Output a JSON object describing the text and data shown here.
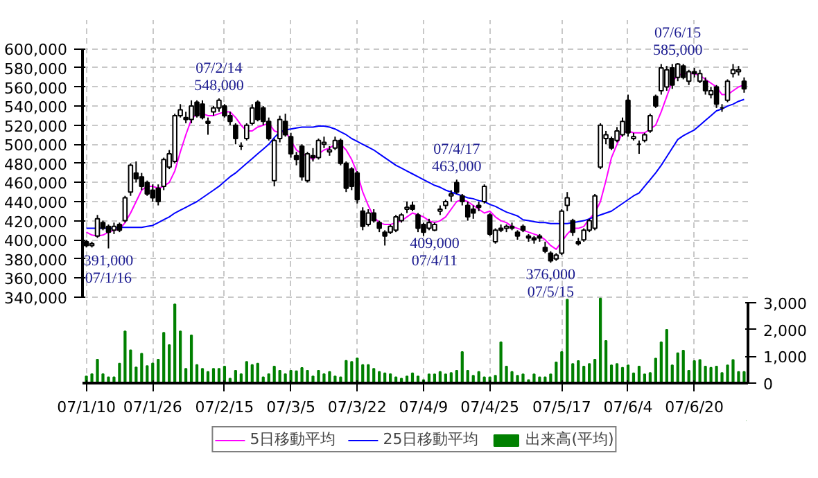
{
  "chart_data": {
    "type": "candlestick",
    "categories": [
      "07/1/10",
      null,
      null,
      null,
      null,
      null,
      null,
      null,
      null,
      null,
      null,
      null,
      "07/1/26",
      null,
      null,
      null,
      null,
      null,
      null,
      null,
      null,
      null,
      null,
      null,
      null,
      "07/2/15",
      null,
      null,
      null,
      null,
      null,
      null,
      null,
      null,
      null,
      null,
      null,
      "07/3/5",
      null,
      null,
      null,
      null,
      null,
      null,
      null,
      null,
      null,
      null,
      null,
      "07/3/22",
      null,
      null,
      null,
      null,
      null,
      null,
      null,
      null,
      null,
      null,
      null,
      "07/4/9",
      null,
      null,
      null,
      null,
      null,
      null,
      null,
      null,
      null,
      null,
      null,
      "07/4/25",
      null,
      null,
      null,
      null,
      null,
      null,
      null,
      null,
      null,
      null,
      null,
      null,
      "07/5/17",
      null,
      null,
      null,
      null,
      null,
      null,
      null,
      null,
      null,
      null,
      null,
      "07/6/4",
      null,
      null,
      null,
      null,
      null,
      null,
      null,
      null,
      null,
      null,
      null,
      "07/6/20",
      null,
      null,
      null,
      null,
      null,
      null,
      null,
      null,
      null
    ],
    "ohlc": [
      [
        398000,
        400000,
        392000,
        394000
      ],
      [
        394000,
        398000,
        392000,
        396000
      ],
      [
        404000,
        426000,
        402000,
        422000
      ],
      [
        418000,
        420000,
        410000,
        412000
      ],
      [
        414000,
        416000,
        391000,
        408000
      ],
      [
        410000,
        418000,
        406000,
        414000
      ],
      [
        416000,
        418000,
        408000,
        410000
      ],
      [
        420000,
        446000,
        418000,
        444000
      ],
      [
        450000,
        480000,
        446000,
        478000
      ],
      [
        470000,
        482000,
        460000,
        464000
      ],
      [
        466000,
        470000,
        452000,
        456000
      ],
      [
        460000,
        462000,
        446000,
        448000
      ],
      [
        452000,
        458000,
        440000,
        444000
      ],
      [
        454000,
        458000,
        436000,
        440000
      ],
      [
        456000,
        486000,
        452000,
        484000
      ],
      [
        476000,
        494000,
        474000,
        490000
      ],
      [
        482000,
        532000,
        480000,
        530000
      ],
      [
        530000,
        542000,
        528000,
        536000
      ],
      [
        528000,
        534000,
        522000,
        526000
      ],
      [
        526000,
        546000,
        522000,
        540000
      ],
      [
        544000,
        546000,
        528000,
        530000
      ],
      [
        542000,
        546000,
        526000,
        528000
      ],
      [
        524000,
        528000,
        510000,
        522000
      ],
      [
        534000,
        540000,
        530000,
        538000
      ],
      [
        538000,
        548000,
        534000,
        546000
      ],
      [
        540000,
        542000,
        528000,
        530000
      ],
      [
        530000,
        534000,
        520000,
        524000
      ],
      [
        520000,
        522000,
        500000,
        506000
      ],
      [
        498000,
        502000,
        494000,
        498000
      ],
      [
        506000,
        522000,
        504000,
        520000
      ],
      [
        522000,
        542000,
        520000,
        538000
      ],
      [
        544000,
        546000,
        524000,
        526000
      ],
      [
        538000,
        540000,
        520000,
        524000
      ],
      [
        524000,
        528000,
        504000,
        506000
      ],
      [
        462000,
        506000,
        456000,
        504000
      ],
      [
        506000,
        530000,
        502000,
        526000
      ],
      [
        524000,
        532000,
        508000,
        510000
      ],
      [
        508000,
        512000,
        486000,
        490000
      ],
      [
        488000,
        492000,
        478000,
        484000
      ],
      [
        498000,
        500000,
        462000,
        466000
      ],
      [
        462000,
        492000,
        460000,
        490000
      ],
      [
        488000,
        496000,
        482000,
        486000
      ],
      [
        486000,
        506000,
        484000,
        504000
      ],
      [
        500000,
        508000,
        496000,
        502000
      ],
      [
        492000,
        498000,
        488000,
        494000
      ],
      [
        496000,
        508000,
        494000,
        504000
      ],
      [
        504000,
        506000,
        478000,
        480000
      ],
      [
        480000,
        482000,
        450000,
        454000
      ],
      [
        474000,
        476000,
        452000,
        456000
      ],
      [
        470000,
        472000,
        438000,
        442000
      ],
      [
        430000,
        434000,
        410000,
        414000
      ],
      [
        416000,
        432000,
        414000,
        428000
      ],
      [
        428000,
        432000,
        418000,
        420000
      ],
      [
        418000,
        420000,
        408000,
        412000
      ],
      [
        408000,
        410000,
        394000,
        404000
      ],
      [
        408000,
        416000,
        406000,
        414000
      ],
      [
        410000,
        426000,
        408000,
        424000
      ],
      [
        420000,
        428000,
        418000,
        426000
      ],
      [
        432000,
        440000,
        428000,
        434000
      ],
      [
        436000,
        440000,
        430000,
        432000
      ],
      [
        426000,
        428000,
        408000,
        412000
      ],
      [
        416000,
        418000,
        404000,
        408000
      ],
      [
        412000,
        422000,
        410000,
        418000
      ],
      [
        410000,
        418000,
        409000,
        416000
      ],
      [
        430000,
        436000,
        426000,
        432000
      ],
      [
        436000,
        442000,
        432000,
        440000
      ],
      [
        446000,
        452000,
        440000,
        448000
      ],
      [
        460000,
        463000,
        448000,
        450000
      ],
      [
        446000,
        448000,
        436000,
        440000
      ],
      [
        436000,
        440000,
        420000,
        424000
      ],
      [
        432000,
        436000,
        422000,
        428000
      ],
      [
        436000,
        440000,
        430000,
        434000
      ],
      [
        440000,
        458000,
        438000,
        456000
      ],
      [
        426000,
        428000,
        404000,
        406000
      ],
      [
        398000,
        412000,
        396000,
        410000
      ],
      [
        412000,
        416000,
        408000,
        410000
      ],
      [
        412000,
        416000,
        408000,
        414000
      ],
      [
        414000,
        418000,
        410000,
        412000
      ],
      [
        408000,
        410000,
        400000,
        404000
      ],
      [
        414000,
        416000,
        408000,
        410000
      ],
      [
        404000,
        406000,
        398000,
        402000
      ],
      [
        402000,
        404000,
        396000,
        400000
      ],
      [
        404000,
        406000,
        398000,
        402000
      ],
      [
        392000,
        398000,
        386000,
        388000
      ],
      [
        386000,
        388000,
        376000,
        378000
      ],
      [
        380000,
        386000,
        378000,
        384000
      ],
      [
        386000,
        432000,
        384000,
        430000
      ],
      [
        436000,
        450000,
        430000,
        444000
      ],
      [
        420000,
        422000,
        404000,
        408000
      ],
      [
        398000,
        402000,
        394000,
        396000
      ],
      [
        400000,
        412000,
        398000,
        410000
      ],
      [
        410000,
        422000,
        408000,
        420000
      ],
      [
        412000,
        448000,
        410000,
        446000
      ],
      [
        476000,
        522000,
        474000,
        520000
      ],
      [
        506000,
        514000,
        500000,
        510000
      ],
      [
        506000,
        508000,
        494000,
        496000
      ],
      [
        504000,
        518000,
        502000,
        514000
      ],
      [
        510000,
        528000,
        508000,
        524000
      ],
      [
        546000,
        552000,
        508000,
        512000
      ],
      [
        506000,
        512000,
        504000,
        508000
      ],
      [
        500000,
        504000,
        490000,
        500000
      ],
      [
        504000,
        512000,
        502000,
        510000
      ],
      [
        514000,
        532000,
        512000,
        530000
      ],
      [
        550000,
        552000,
        538000,
        540000
      ],
      [
        556000,
        584000,
        552000,
        580000
      ],
      [
        560000,
        582000,
        556000,
        578000
      ],
      [
        580000,
        584000,
        558000,
        562000
      ],
      [
        570000,
        585000,
        566000,
        584000
      ],
      [
        582000,
        584000,
        568000,
        570000
      ],
      [
        566000,
        578000,
        562000,
        576000
      ],
      [
        576000,
        580000,
        570000,
        574000
      ],
      [
        566000,
        578000,
        564000,
        574000
      ],
      [
        566000,
        570000,
        552000,
        556000
      ],
      [
        552000,
        560000,
        548000,
        556000
      ],
      [
        560000,
        562000,
        538000,
        542000
      ],
      [
        538000,
        542000,
        534000,
        538000
      ],
      [
        546000,
        568000,
        544000,
        566000
      ],
      [
        574000,
        584000,
        570000,
        578000
      ],
      [
        576000,
        582000,
        572000,
        578000
      ],
      [
        566000,
        570000,
        554000,
        558000
      ]
    ],
    "series": [
      {
        "name": "5日移動平均",
        "type": "line",
        "color": "#ff00ff",
        "values": [
          408000,
          405000,
          404000,
          405000,
          408000,
          410000,
          411000,
          418000,
          428000,
          440000,
          452000,
          456000,
          456000,
          454000,
          456000,
          460000,
          472000,
          492000,
          510000,
          526000,
          532000,
          532000,
          530000,
          530000,
          532000,
          534000,
          534000,
          528000,
          520000,
          514000,
          514000,
          518000,
          520000,
          522000,
          514000,
          512000,
          514000,
          504000,
          494000,
          490000,
          488000,
          484000,
          490000,
          494000,
          496000,
          500000,
          500000,
          494000,
          484000,
          470000,
          450000,
          436000,
          424000,
          418000,
          416000,
          416000,
          418000,
          420000,
          424000,
          428000,
          426000,
          424000,
          420000,
          418000,
          420000,
          424000,
          432000,
          440000,
          442000,
          440000,
          436000,
          432000,
          428000,
          430000,
          424000,
          420000,
          418000,
          414000,
          412000,
          410000,
          408000,
          406000,
          404000,
          400000,
          394000,
          390000,
          398000,
          406000,
          412000,
          412000,
          414000,
          422000,
          428000,
          440000,
          462000,
          486000,
          500000,
          512000,
          514000,
          512000,
          512000,
          512000,
          516000,
          520000,
          534000,
          550000,
          566000,
          572000,
          574000,
          574000,
          574000,
          572000,
          568000,
          564000,
          560000,
          552000,
          552000,
          556000,
          560000,
          562000
        ]
      },
      {
        "name": "25日移動平均",
        "type": "line",
        "color": "#0000ff",
        "values": [
          412000,
          412000,
          412000,
          412000,
          412000,
          412000,
          413000,
          413000,
          413000,
          413000,
          413000,
          414000,
          415000,
          418000,
          421000,
          424000,
          428000,
          431000,
          434000,
          437000,
          440000,
          444000,
          448000,
          452000,
          456000,
          461000,
          466000,
          470000,
          475000,
          480000,
          485000,
          490000,
          495000,
          500000,
          507000,
          513000,
          515000,
          516000,
          517000,
          518000,
          518000,
          518000,
          519000,
          519000,
          518000,
          516000,
          513000,
          510000,
          506000,
          503000,
          500000,
          497000,
          494000,
          490000,
          486000,
          482000,
          478000,
          475000,
          472000,
          469000,
          466000,
          463000,
          460000,
          457000,
          455000,
          452000,
          450000,
          448000,
          446000,
          444000,
          443000,
          441000,
          440000,
          437000,
          435000,
          432000,
          429000,
          427000,
          425000,
          421000,
          420000,
          419000,
          418000,
          418000,
          417000,
          417000,
          417000,
          417000,
          418000,
          419000,
          420000,
          422000,
          424000,
          426000,
          428000,
          430000,
          434000,
          438000,
          442000,
          446000,
          449000,
          456000,
          463000,
          470000,
          478000,
          487000,
          496000,
          505000,
          509000,
          512000,
          515000,
          520000,
          525000,
          530000,
          535000,
          537000,
          540000,
          542000,
          545000,
          547000
        ]
      },
      {
        "name": "出来高(平均)",
        "type": "bar",
        "color": "#008000",
        "axis": "y2",
        "values": [
          250,
          340,
          880,
          340,
          220,
          220,
          730,
          1940,
          1230,
          590,
          1100,
          640,
          740,
          880,
          1890,
          1430,
          2950,
          1940,
          540,
          1790,
          680,
          540,
          420,
          540,
          540,
          620,
          170,
          470,
          340,
          800,
          680,
          730,
          220,
          340,
          620,
          470,
          340,
          470,
          450,
          570,
          470,
          250,
          470,
          340,
          420,
          250,
          220,
          840,
          800,
          930,
          680,
          680,
          540,
          420,
          370,
          340,
          220,
          170,
          250,
          370,
          250,
          120,
          330,
          330,
          420,
          330,
          380,
          470,
          1170,
          470,
          280,
          420,
          220,
          220,
          280,
          1530,
          620,
          420,
          280,
          330,
          120,
          330,
          220,
          220,
          330,
          780,
          1170,
          3130,
          720,
          830,
          620,
          720,
          880,
          3170,
          1580,
          670,
          720,
          580,
          670,
          370,
          620,
          330,
          380,
          920,
          1530,
          2000,
          670,
          1120,
          1220,
          470,
          830,
          870,
          620,
          580,
          620,
          380,
          670,
          870,
          420,
          420
        ]
      }
    ],
    "ylim": [
      250000,
      630000
    ],
    "yticks": [
      {
        "value": 340000,
        "label": "340,000"
      },
      {
        "value": 360000,
        "label": "360,000"
      },
      {
        "value": 380000,
        "label": "380,000"
      },
      {
        "value": 400000,
        "label": "400,000"
      },
      {
        "value": 420000,
        "label": "420,000"
      },
      {
        "value": 440000,
        "label": "440,000"
      },
      {
        "value": 460000,
        "label": "460,000"
      },
      {
        "value": 480000,
        "label": "480,000"
      },
      {
        "value": 500000,
        "label": "500,000"
      },
      {
        "value": 520000,
        "label": "520,000"
      },
      {
        "value": 540000,
        "label": "540,000"
      },
      {
        "value": 560000,
        "label": "560,000"
      },
      {
        "value": 580000,
        "label": "580,000"
      },
      {
        "value": 600000,
        "label": "600,000"
      }
    ],
    "y2lim": [
      0,
      13600
    ],
    "y2ticks": [
      0,
      {
        "value": 1000,
        "label": "1,000"
      },
      {
        "value": 2000,
        "label": "2,000"
      },
      {
        "value": 3000,
        "label": "3,000"
      }
    ],
    "annotations": [
      {
        "text": "391,000\n07/1/16",
        "y": 391000
      },
      {
        "text": "07/2/14\n548,000",
        "y": 548000
      },
      {
        "text": "409,000\n07/4/11",
        "y": 409000
      },
      {
        "text": "07/4/17\n463,000",
        "y": 463000
      },
      {
        "text": "376,000\n07/5/15",
        "y": 376000
      },
      {
        "text": "07/6/15\n585,000",
        "y": 585000
      }
    ],
    "grid": true,
    "legend": "bottom"
  }
}
